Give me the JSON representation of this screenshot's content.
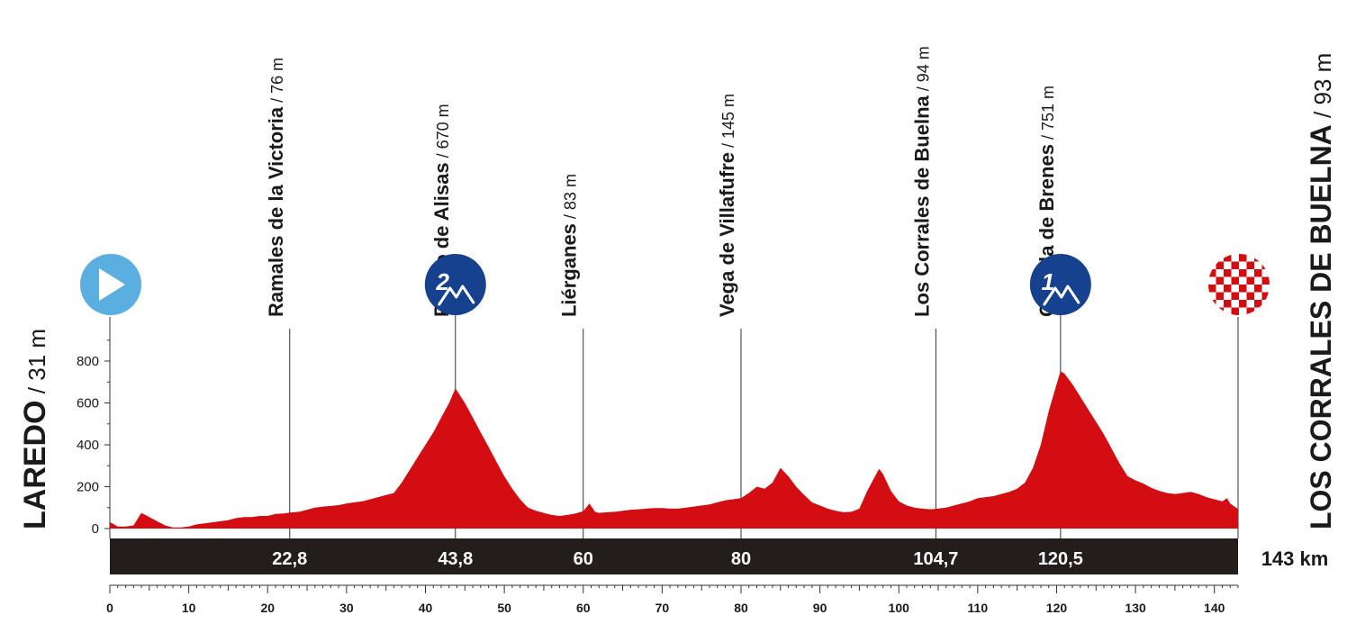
{
  "chart_data": {
    "type": "area",
    "title": "",
    "xlabel": "",
    "ylabel": "",
    "xlim": [
      0,
      143
    ],
    "ylim": [
      0,
      900
    ],
    "x_ticks": [
      0,
      10,
      20,
      30,
      40,
      50,
      60,
      70,
      80,
      90,
      100,
      110,
      120,
      130,
      140
    ],
    "y_ticks": [
      0,
      200,
      400,
      600,
      800
    ],
    "fill_color": "#d40d12",
    "total_distance_label": "143 km",
    "start": {
      "name": "LAREDO",
      "altitude": "31 m"
    },
    "finish": {
      "name": "LOS CORRALES DE BUELNA",
      "altitude": "93 m"
    },
    "waypoints": [
      {
        "km": 22.8,
        "km_label": "22,8",
        "name": "Ramales de la Victoria",
        "altitude": "76 m"
      },
      {
        "km": 43.8,
        "km_label": "43,8",
        "name": "Puerto de Alisas",
        "altitude": "670 m",
        "category": "2"
      },
      {
        "km": 60,
        "km_label": "60",
        "name": "Liérganes",
        "altitude": "83 m"
      },
      {
        "km": 80,
        "km_label": "80",
        "name": "Vega de Villafufre",
        "altitude": "145 m"
      },
      {
        "km": 104.7,
        "km_label": "104,7",
        "name": "Los Corrales de Buelna",
        "altitude": "94 m"
      },
      {
        "km": 120.5,
        "km_label": "120,5",
        "name": "Collada de Brenes",
        "altitude": "751 m",
        "category": "1"
      }
    ],
    "profile": [
      [
        0,
        31
      ],
      [
        1,
        10
      ],
      [
        2,
        10
      ],
      [
        3,
        15
      ],
      [
        4,
        75
      ],
      [
        5,
        55
      ],
      [
        6,
        35
      ],
      [
        7,
        15
      ],
      [
        8,
        5
      ],
      [
        9,
        5
      ],
      [
        10,
        10
      ],
      [
        11,
        20
      ],
      [
        12,
        25
      ],
      [
        13,
        30
      ],
      [
        14,
        35
      ],
      [
        15,
        40
      ],
      [
        16,
        50
      ],
      [
        17,
        55
      ],
      [
        18,
        55
      ],
      [
        19,
        60
      ],
      [
        20,
        60
      ],
      [
        21,
        70
      ],
      [
        22,
        72
      ],
      [
        22.8,
        76
      ],
      [
        24,
        80
      ],
      [
        25,
        90
      ],
      [
        26,
        100
      ],
      [
        27,
        105
      ],
      [
        28,
        108
      ],
      [
        29,
        112
      ],
      [
        30,
        120
      ],
      [
        31,
        125
      ],
      [
        32,
        130
      ],
      [
        33,
        140
      ],
      [
        34,
        150
      ],
      [
        35,
        160
      ],
      [
        36,
        170
      ],
      [
        37,
        220
      ],
      [
        38,
        280
      ],
      [
        39,
        340
      ],
      [
        40,
        400
      ],
      [
        41,
        460
      ],
      [
        42,
        530
      ],
      [
        43,
        600
      ],
      [
        43.8,
        670
      ],
      [
        45,
        600
      ],
      [
        46,
        530
      ],
      [
        47,
        460
      ],
      [
        48,
        390
      ],
      [
        49,
        320
      ],
      [
        50,
        250
      ],
      [
        51,
        190
      ],
      [
        52,
        140
      ],
      [
        53,
        100
      ],
      [
        54,
        85
      ],
      [
        55,
        75
      ],
      [
        56,
        65
      ],
      [
        57,
        60
      ],
      [
        58,
        65
      ],
      [
        59,
        72
      ],
      [
        60,
        83
      ],
      [
        60.8,
        120
      ],
      [
        61.5,
        80
      ],
      [
        62,
        75
      ],
      [
        63,
        78
      ],
      [
        64,
        80
      ],
      [
        65,
        85
      ],
      [
        66,
        90
      ],
      [
        67,
        92
      ],
      [
        68,
        95
      ],
      [
        69,
        98
      ],
      [
        70,
        98
      ],
      [
        71,
        95
      ],
      [
        72,
        95
      ],
      [
        73,
        100
      ],
      [
        74,
        105
      ],
      [
        75,
        110
      ],
      [
        76,
        115
      ],
      [
        77,
        125
      ],
      [
        78,
        135
      ],
      [
        79,
        140
      ],
      [
        80,
        145
      ],
      [
        81,
        170
      ],
      [
        82,
        200
      ],
      [
        83,
        190
      ],
      [
        84,
        220
      ],
      [
        85,
        290
      ],
      [
        86,
        250
      ],
      [
        87,
        200
      ],
      [
        88,
        160
      ],
      [
        89,
        125
      ],
      [
        90,
        110
      ],
      [
        91,
        95
      ],
      [
        92,
        85
      ],
      [
        93,
        78
      ],
      [
        94,
        80
      ],
      [
        95,
        95
      ],
      [
        96,
        180
      ],
      [
        97,
        250
      ],
      [
        97.5,
        285
      ],
      [
        98,
        260
      ],
      [
        99,
        180
      ],
      [
        100,
        130
      ],
      [
        101,
        110
      ],
      [
        102,
        100
      ],
      [
        103,
        95
      ],
      [
        104,
        92
      ],
      [
        104.7,
        94
      ],
      [
        106,
        100
      ],
      [
        107,
        110
      ],
      [
        108,
        120
      ],
      [
        109,
        130
      ],
      [
        110,
        145
      ],
      [
        111,
        150
      ],
      [
        112,
        155
      ],
      [
        113,
        165
      ],
      [
        114,
        175
      ],
      [
        115,
        190
      ],
      [
        116,
        220
      ],
      [
        117,
        290
      ],
      [
        118,
        400
      ],
      [
        119,
        560
      ],
      [
        120,
        690
      ],
      [
        120.5,
        751
      ],
      [
        121,
        740
      ],
      [
        122,
        690
      ],
      [
        123,
        630
      ],
      [
        124,
        570
      ],
      [
        125,
        510
      ],
      [
        126,
        450
      ],
      [
        127,
        380
      ],
      [
        128,
        310
      ],
      [
        129,
        250
      ],
      [
        130,
        230
      ],
      [
        131,
        215
      ],
      [
        132,
        195
      ],
      [
        133,
        180
      ],
      [
        134,
        170
      ],
      [
        135,
        165
      ],
      [
        136,
        170
      ],
      [
        137,
        175
      ],
      [
        138,
        165
      ],
      [
        139,
        150
      ],
      [
        140,
        140
      ],
      [
        141,
        130
      ],
      [
        141.6,
        145
      ],
      [
        142,
        120
      ],
      [
        143,
        93
      ]
    ]
  }
}
